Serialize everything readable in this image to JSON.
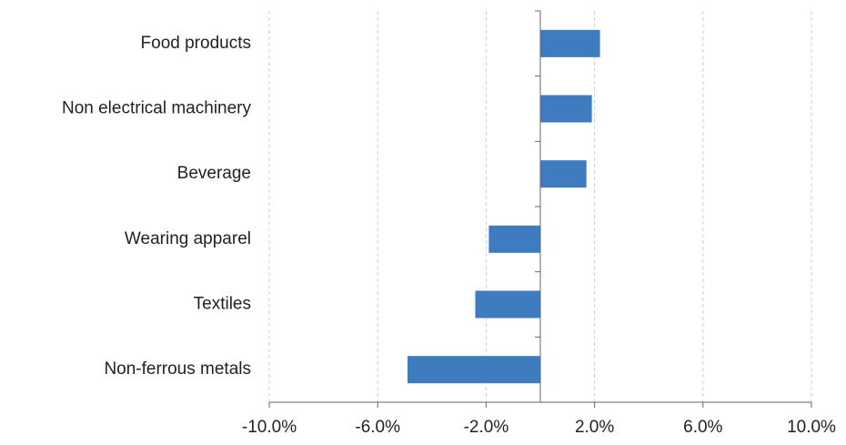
{
  "chart_data": {
    "type": "barh",
    "categories": [
      "Food products",
      "Non electrical machinery",
      "Beverage",
      "Wearing apparel",
      "Textiles",
      "Non-ferrous metals"
    ],
    "values": [
      2.2,
      1.9,
      1.7,
      -1.9,
      -2.4,
      -4.9
    ],
    "color": "#3f7bbf",
    "xlim": [
      -10,
      10
    ],
    "xticks": [
      {
        "value": -10,
        "label": "-10.0%"
      },
      {
        "value": -6,
        "label": "-6.0%"
      },
      {
        "value": -2,
        "label": "-2.0%"
      },
      {
        "value": 2,
        "label": "2.0%"
      },
      {
        "value": 6,
        "label": "6.0%"
      },
      {
        "value": 10,
        "label": "10.0%"
      }
    ],
    "grid": true
  }
}
